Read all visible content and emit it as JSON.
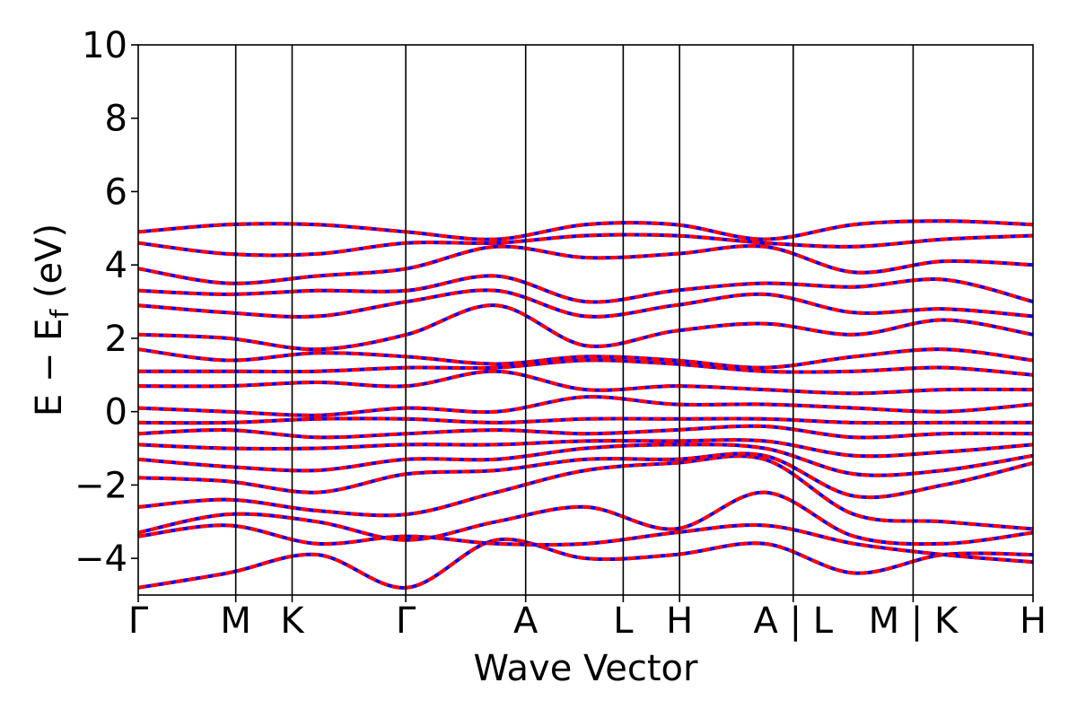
{
  "chart_data": {
    "type": "line",
    "title": "",
    "xlabel": "Wave Vector",
    "ylabel": "E − E",
    "ylabel_subscript": "f",
    "ylabel_unit": "(eV)",
    "ylim": [
      -5,
      10
    ],
    "yticks": [
      10,
      8,
      6,
      4,
      2,
      0,
      -2,
      -4
    ],
    "ytick_labels": [
      "10",
      "8",
      "6",
      "4",
      "2",
      "0",
      "−2",
      "−4"
    ],
    "kpath_labels": [
      "Γ",
      "M",
      "K",
      "Γ",
      "A",
      "L",
      "H",
      "A | L",
      "M | K",
      "H"
    ],
    "kpath_positions": [
      0,
      0.109,
      0.172,
      0.299,
      0.433,
      0.542,
      0.605,
      0.732,
      0.866,
      1.0
    ],
    "grid": false,
    "legend": "none",
    "series": [
      {
        "color": "#0000ff",
        "style": "solid"
      },
      {
        "color": "#ff0000",
        "style": "dashed"
      }
    ],
    "bands": [
      [
        -4.8,
        -4.4,
        -3.9,
        -4.8,
        -3.5,
        -4.0,
        -3.9,
        -3.6,
        -4.4,
        -3.9,
        -3.9
      ],
      [
        -3.4,
        -3.1,
        -3.6,
        -3.4,
        -3.6,
        -3.6,
        -3.3,
        -3.1,
        -3.6,
        -3.9,
        -4.1
      ],
      [
        -3.3,
        -2.8,
        -3.0,
        -3.5,
        -3.0,
        -2.6,
        -3.2,
        -2.2,
        -3.4,
        -3.6,
        -3.3
      ],
      [
        -2.6,
        -2.4,
        -2.7,
        -2.8,
        -2.2,
        -1.6,
        -1.4,
        -1.3,
        -2.8,
        -3.0,
        -3.2
      ],
      [
        -1.8,
        -1.9,
        -2.2,
        -1.7,
        -1.6,
        -1.3,
        -1.3,
        -1.2,
        -2.3,
        -2.0,
        -1.4
      ],
      [
        -1.3,
        -1.5,
        -1.6,
        -1.3,
        -1.3,
        -1.0,
        -0.9,
        -1.0,
        -1.7,
        -1.6,
        -1.2
      ],
      [
        -0.9,
        -1.0,
        -1.0,
        -0.9,
        -0.9,
        -0.8,
        -0.8,
        -0.8,
        -1.2,
        -1.1,
        -0.9
      ],
      [
        -0.6,
        -0.5,
        -0.7,
        -0.6,
        -0.5,
        -0.6,
        -0.5,
        -0.4,
        -0.7,
        -0.6,
        -0.6
      ],
      [
        -0.3,
        -0.3,
        -0.2,
        -0.2,
        -0.3,
        -0.2,
        -0.2,
        -0.2,
        -0.3,
        -0.3,
        -0.3
      ],
      [
        0.1,
        0.0,
        -0.1,
        0.1,
        0.0,
        0.4,
        0.2,
        0.2,
        0.1,
        0.0,
        0.2
      ],
      [
        0.7,
        0.7,
        0.8,
        0.7,
        1.1,
        0.6,
        0.7,
        0.6,
        0.5,
        0.6,
        0.6
      ],
      [
        1.1,
        1.1,
        1.1,
        1.2,
        1.2,
        1.4,
        1.3,
        1.1,
        1.1,
        1.2,
        1.0
      ],
      [
        1.7,
        1.4,
        1.6,
        1.5,
        1.3,
        1.5,
        1.4,
        1.2,
        1.5,
        1.7,
        1.4
      ],
      [
        2.1,
        2.0,
        1.7,
        2.1,
        2.9,
        1.8,
        2.2,
        2.4,
        2.1,
        2.5,
        2.1
      ],
      [
        2.9,
        2.7,
        2.6,
        3.0,
        3.3,
        2.6,
        2.9,
        3.2,
        2.7,
        2.8,
        2.6
      ],
      [
        3.3,
        3.2,
        3.3,
        3.3,
        3.7,
        3.0,
        3.3,
        3.5,
        3.4,
        3.6,
        3.0
      ],
      [
        3.9,
        3.5,
        3.7,
        3.9,
        4.5,
        4.2,
        4.3,
        4.5,
        3.8,
        4.1,
        4.0
      ],
      [
        4.6,
        4.3,
        4.3,
        4.6,
        4.6,
        4.8,
        4.8,
        4.6,
        4.5,
        4.7,
        4.8
      ],
      [
        4.9,
        5.1,
        5.1,
        4.9,
        4.7,
        5.1,
        5.1,
        4.7,
        5.1,
        5.2,
        5.1
      ]
    ]
  }
}
